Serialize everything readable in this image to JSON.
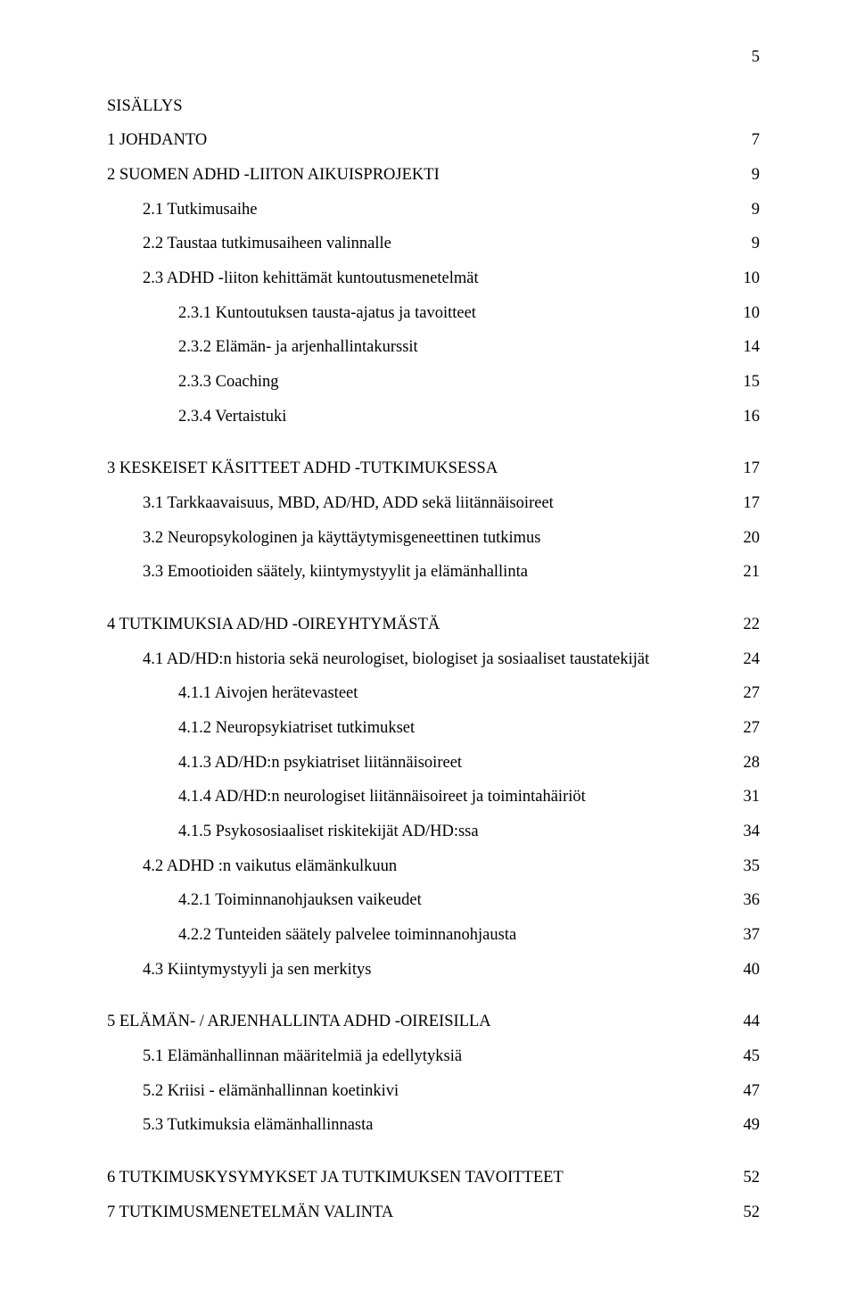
{
  "page_number": "5",
  "heading": "SISÄLLYS",
  "toc": [
    {
      "label": "1 JOHDANTO",
      "page": "7",
      "indent": 0,
      "gap_before": false
    },
    {
      "label": "2 SUOMEN ADHD -LIITON AIKUISPROJEKTI",
      "page": "9",
      "indent": 0,
      "gap_before": false
    },
    {
      "label": "2.1 Tutkimusaihe",
      "page": "9",
      "indent": 1,
      "gap_before": false
    },
    {
      "label": "2.2 Taustaa tutkimusaiheen valinnalle",
      "page": "9",
      "indent": 1,
      "gap_before": false
    },
    {
      "label": "2.3 ADHD -liiton kehittämät kuntoutusmenetelmät",
      "page": "10",
      "indent": 1,
      "gap_before": false
    },
    {
      "label": "2.3.1 Kuntoutuksen   tausta-ajatus  ja tavoitteet",
      "page": "10",
      "indent": 2,
      "gap_before": false
    },
    {
      "label": "2.3.2 Elämän- ja arjenhallintakurssit",
      "page": "14",
      "indent": 2,
      "gap_before": false
    },
    {
      "label": "2.3.3 Coaching",
      "page": "15",
      "indent": 2,
      "gap_before": false
    },
    {
      "label": "2.3.4 Vertaistuki",
      "page": "16",
      "indent": 2,
      "gap_before": false
    },
    {
      "label": "3 KESKEISET KÄSITTEET  ADHD -TUTKIMUKSESSA",
      "page": "17",
      "indent": 0,
      "gap_before": true
    },
    {
      "label": "3.1 Tarkkaavaisuus, MBD, AD/HD, ADD   sekä liitännäisoireet",
      "page": "17",
      "indent": 1,
      "gap_before": false
    },
    {
      "label": "3.2  Neuropsykologinen ja käyttäytymisgeneettinen tutkimus",
      "page": "20",
      "indent": 1,
      "gap_before": false
    },
    {
      "label": "3.3  Emootioiden säätely, kiintymystyylit ja elämänhallinta",
      "page": "21",
      "indent": 1,
      "gap_before": false
    },
    {
      "label": "4 TUTKIMUKSIA AD/HD -OIREYHTYMÄSTÄ",
      "page": "22",
      "indent": 0,
      "gap_before": true
    },
    {
      "label": "4.1 AD/HD:n historia sekä neurologiset, biologiset ja sosiaaliset taustatekijät",
      "page": "24",
      "indent": 1,
      "gap_before": false
    },
    {
      "label": "4.1.1 Aivojen herätevasteet",
      "page": "27",
      "indent": 2,
      "gap_before": false
    },
    {
      "label": "4.1.2 Neuropsykiatriset tutkimukset",
      "page": "27",
      "indent": 2,
      "gap_before": false
    },
    {
      "label": "4.1.3  AD/HD:n  psykiatriset liitännäisoireet",
      "page": "28",
      "indent": 2,
      "gap_before": false
    },
    {
      "label": "4.1.4 AD/HD:n neurologiset liitännäisoireet ja toimintahäiriöt",
      "page": "31",
      "indent": 2,
      "gap_before": false
    },
    {
      "label": "4.1.5  Psykososiaaliset riskitekijät AD/HD:ssa",
      "page": "34",
      "indent": 2,
      "gap_before": false
    },
    {
      "label": "4.2 ADHD :n vaikutus elämänkulkuun",
      "page": "35",
      "indent": 1,
      "gap_before": false
    },
    {
      "label": "4.2.1 Toiminnanohjauksen vaikeudet",
      "page": "36",
      "indent": 2,
      "gap_before": false
    },
    {
      "label": "4.2.2 Tunteiden säätely palvelee toiminnanohjausta",
      "page": "37",
      "indent": 2,
      "gap_before": false
    },
    {
      "label": "4.3 Kiintymystyyli ja sen merkitys",
      "page": "40",
      "indent": 1,
      "gap_before": false
    },
    {
      "label": "5 ELÄMÄN- / ARJENHALLINTA ADHD -OIREISILLA",
      "page": "44",
      "indent": 0,
      "gap_before": true
    },
    {
      "label": "5.1 Elämänhallinnan määritelmiä ja edellytyksiä",
      "page": "45",
      "indent": 1,
      "gap_before": false
    },
    {
      "label": "5.2 Kriisi - elämänhallinnan koetinkivi",
      "page": "47",
      "indent": 1,
      "gap_before": false
    },
    {
      "label": "5.3  Tutkimuksia elämänhallinnasta",
      "page": "49",
      "indent": 1,
      "gap_before": false
    },
    {
      "label": "6 TUTKIMUSKYSYMYKSET  JA TUTKIMUKSEN TAVOITTEET",
      "page": "52",
      "indent": 0,
      "gap_before": true
    },
    {
      "label": "7 TUTKIMUSMENETELMÄN VALINTA",
      "page": "52",
      "indent": 0,
      "gap_before": false
    }
  ]
}
